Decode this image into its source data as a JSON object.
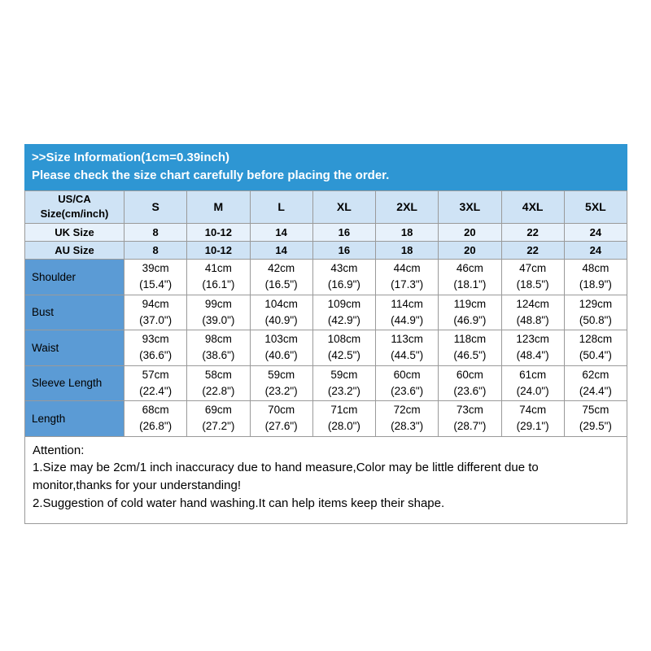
{
  "colors": {
    "banner_bg": "#2e96d3",
    "banner_text": "#ffffff",
    "header_bg": "#cfe3f5",
    "header_alt_bg": "#e7f1fb",
    "label_col_bg": "#5b9bd5",
    "cell_bg": "#ffffff",
    "border_color": "#9a9a9a",
    "text_color": "#000000"
  },
  "banner": {
    "line1": ">>Size Information(1cm=0.39inch)",
    "line2": "Please check the size chart carefully before placing the order."
  },
  "table": {
    "header": {
      "label": "US/CA\nSize(cm/inch)",
      "sizes": [
        "S",
        "M",
        "L",
        "XL",
        "2XL",
        "3XL",
        "4XL",
        "5XL"
      ]
    },
    "size_rows": [
      {
        "label": "UK Size",
        "values": [
          "8",
          "10-12",
          "14",
          "16",
          "18",
          "20",
          "22",
          "24"
        ]
      },
      {
        "label": "AU Size",
        "values": [
          "8",
          "10-12",
          "14",
          "16",
          "18",
          "20",
          "22",
          "24"
        ]
      }
    ],
    "measurement_rows": [
      {
        "label": "Shoulder",
        "values": [
          "39cm\n(15.4\")",
          "41cm\n(16.1\")",
          "42cm\n(16.5\")",
          "43cm\n(16.9\")",
          "44cm\n(17.3\")",
          "46cm\n(18.1\")",
          "47cm\n(18.5\")",
          "48cm\n(18.9\")"
        ]
      },
      {
        "label": "Bust",
        "values": [
          "94cm\n(37.0\")",
          "99cm\n(39.0\")",
          "104cm\n(40.9\")",
          "109cm\n(42.9\")",
          "114cm\n(44.9\")",
          "119cm\n(46.9\")",
          "124cm\n(48.8\")",
          "129cm\n(50.8\")"
        ]
      },
      {
        "label": "Waist",
        "values": [
          "93cm\n(36.6\")",
          "98cm\n(38.6\")",
          "103cm\n(40.6\")",
          "108cm\n(42.5\")",
          "113cm\n(44.5\")",
          "118cm\n(46.5\")",
          "123cm\n(48.4\")",
          "128cm\n(50.4\")"
        ]
      },
      {
        "label": "Sleeve Length",
        "values": [
          "57cm\n(22.4\")",
          "58cm\n(22.8\")",
          "59cm\n(23.2\")",
          "59cm\n(23.2\")",
          "60cm\n(23.6\")",
          "60cm\n(23.6\")",
          "61cm\n(24.0\")",
          "62cm\n(24.4\")"
        ]
      },
      {
        "label": "Length",
        "values": [
          "68cm\n(26.8\")",
          "69cm\n(27.2\")",
          "70cm\n(27.6\")",
          "71cm\n(28.0\")",
          "72cm\n(28.3\")",
          "73cm\n(28.7\")",
          "74cm\n(29.1\")",
          "75cm\n(29.5\")"
        ]
      }
    ]
  },
  "attention": {
    "title": "Attention:",
    "lines": [
      "1.Size may be 2cm/1 inch inaccuracy due to hand measure,Color may be little different due to monitor,thanks for your understanding!",
      "2.Suggestion of cold water hand washing.It can help items keep their shape."
    ]
  }
}
